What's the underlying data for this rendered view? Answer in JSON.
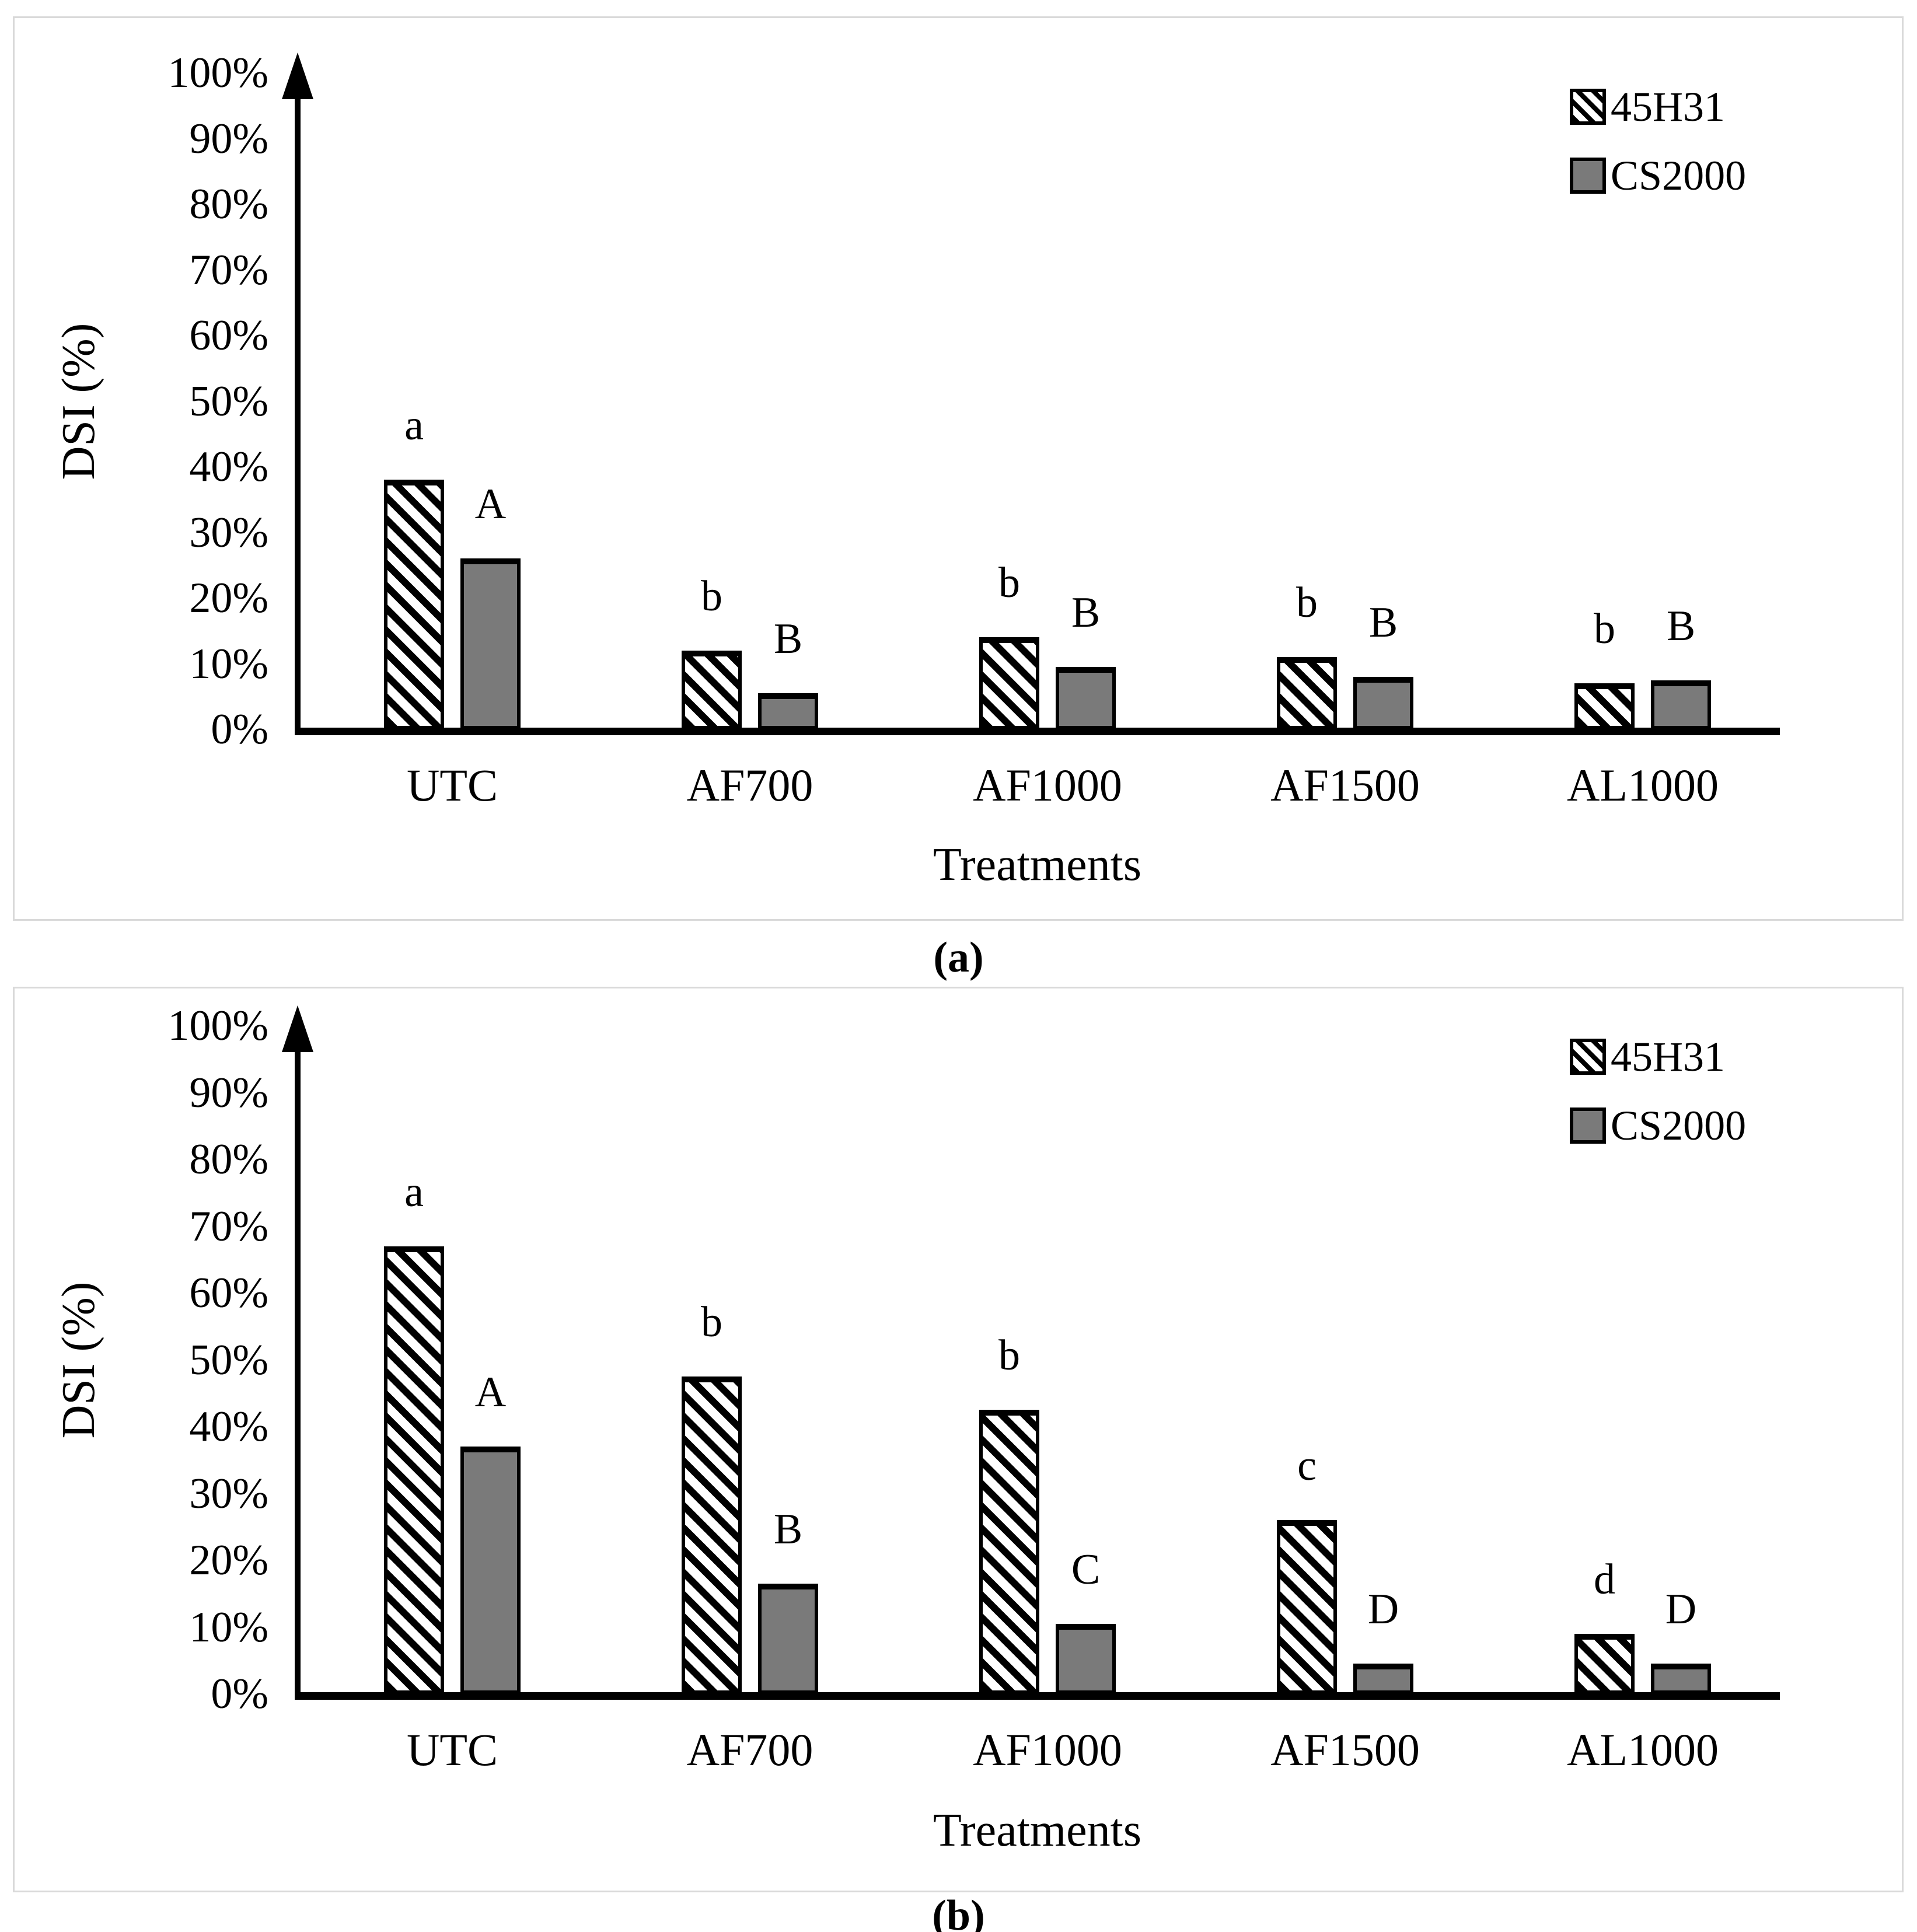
{
  "colors": {
    "bar_gray": "#7a7a7a",
    "bar_border": "#000000",
    "panel_border": "#d9d9d9",
    "axis": "#000000"
  },
  "chart_data": [
    {
      "id": "a",
      "type": "bar",
      "caption": "(a)",
      "ylabel": "DSI (%)",
      "xlabel": "Treatments",
      "categories": [
        "UTC",
        "AF700",
        "AF1000",
        "AF1500",
        "AL1000"
      ],
      "series": [
        {
          "name": "45H31",
          "pattern": "black-diagonal-hatch",
          "values": [
            38,
            12,
            14,
            11,
            7
          ],
          "sig_letters": [
            "a",
            "b",
            "b",
            "b",
            "b"
          ]
        },
        {
          "name": "CS2000",
          "pattern": "solid-gray",
          "values": [
            26,
            5.5,
            9.5,
            8,
            7.5
          ],
          "sig_letters": [
            "A",
            "B",
            "B",
            "B",
            "B"
          ]
        }
      ],
      "ylim": [
        0,
        100
      ],
      "yticks": [
        "100%",
        "90%",
        "80%",
        "70%",
        "60%",
        "50%",
        "40%",
        "30%",
        "20%",
        "10%",
        "0%"
      ],
      "legend_position": "top-right",
      "grid": false
    },
    {
      "id": "b",
      "type": "bar",
      "caption": "(b)",
      "ylabel": "DSI (%)",
      "xlabel": "Treatments",
      "categories": [
        "UTC",
        "AF700",
        "AF1000",
        "AF1500",
        "AL1000"
      ],
      "series": [
        {
          "name": "45H31",
          "pattern": "black-diagonal-hatch",
          "values": [
            67,
            47.5,
            42.5,
            26,
            9
          ],
          "sig_letters": [
            "a",
            "b",
            "b",
            "c",
            "d"
          ]
        },
        {
          "name": "CS2000",
          "pattern": "solid-gray",
          "values": [
            37,
            16.5,
            10.5,
            4.5,
            4.5
          ],
          "sig_letters": [
            "A",
            "B",
            "C",
            "D",
            "D"
          ]
        }
      ],
      "ylim": [
        0,
        100
      ],
      "yticks": [
        "100%",
        "90%",
        "80%",
        "70%",
        "60%",
        "50%",
        "40%",
        "30%",
        "20%",
        "10%",
        "0%"
      ],
      "legend_position": "top-right",
      "grid": false
    }
  ]
}
